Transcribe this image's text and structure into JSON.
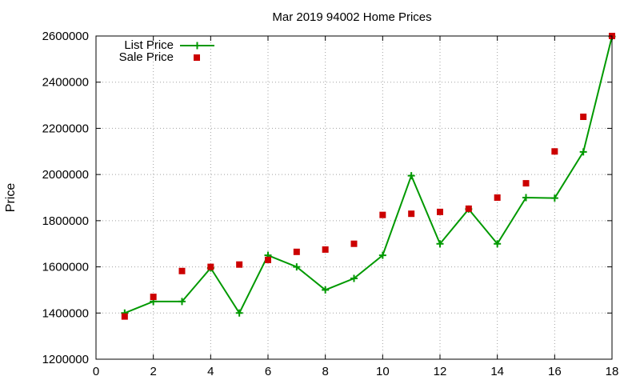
{
  "chart_data": {
    "type": "line",
    "title": "Mar 2019 94002 Home Prices",
    "xlabel": "",
    "ylabel": "Price",
    "xlim": [
      0,
      18
    ],
    "ylim": [
      1200000,
      2600000
    ],
    "x_ticks": [
      "0",
      "2",
      "4",
      "6",
      "8",
      "10",
      "12",
      "14",
      "16",
      "18"
    ],
    "y_ticks": [
      "1200000",
      "1400000",
      "1600000",
      "1800000",
      "2000000",
      "2200000",
      "2400000",
      "2600000"
    ],
    "grid": true,
    "legend_position": "top-left",
    "series": [
      {
        "name": "List Price",
        "style": "line-with-plus-markers",
        "color": "#009900",
        "x": [
          1,
          2,
          3,
          4,
          5,
          6,
          7,
          8,
          9,
          10,
          11,
          12,
          13,
          14,
          15,
          16,
          17,
          18
        ],
        "values": [
          1400000,
          1450000,
          1450000,
          1595000,
          1400000,
          1650000,
          1600000,
          1500000,
          1550000,
          1650000,
          1995000,
          1700000,
          1850000,
          1700000,
          1900000,
          1898000,
          2098000,
          2598000
        ]
      },
      {
        "name": "Sale Price",
        "style": "square-markers",
        "color": "#cc0000",
        "x": [
          1,
          2,
          3,
          4,
          5,
          6,
          7,
          8,
          9,
          10,
          11,
          12,
          13,
          14,
          15,
          16,
          17,
          18
        ],
        "values": [
          1385000,
          1470000,
          1582000,
          1600000,
          1610000,
          1630000,
          1665000,
          1675000,
          1700000,
          1825000,
          1830000,
          1838000,
          1852000,
          1900000,
          1962000,
          2100000,
          2250000,
          2600000
        ]
      }
    ]
  }
}
